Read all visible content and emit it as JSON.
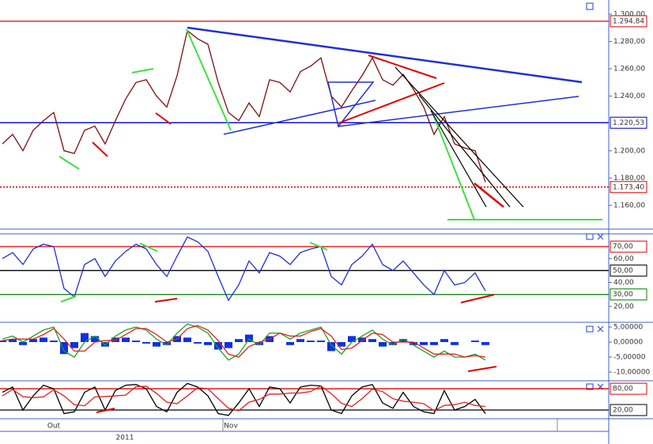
{
  "chart_data": [
    {
      "type": "line",
      "categories": [
        null,
        null,
        null,
        null,
        null,
        "Out",
        null,
        null,
        null,
        null,
        null,
        null,
        null,
        null,
        null,
        null,
        null,
        null,
        null,
        null,
        null,
        null,
        "Nov",
        null,
        null,
        null,
        null,
        null,
        null,
        null,
        null,
        null,
        null,
        null,
        null,
        null,
        null,
        null,
        null,
        null,
        null,
        null,
        null,
        null,
        null,
        null,
        null,
        null
      ],
      "x_year_label": "2011",
      "series": [
        {
          "color": "#7a1010",
          "values": [
            1205,
            1212,
            1200,
            1215,
            1222,
            1228,
            1200,
            1198,
            1215,
            1218,
            1205,
            1222,
            1238,
            1250,
            1252,
            1240,
            1232,
            1255,
            1288,
            1282,
            1278,
            1250,
            1228,
            1222,
            1235,
            1225,
            1252,
            1250,
            1243,
            1258,
            1262,
            1268,
            1240,
            1232,
            1244,
            1255,
            1268,
            1252,
            1248,
            1256,
            1245,
            1232,
            1212,
            1225,
            1205,
            1202,
            1200,
            1177
          ]
        }
      ],
      "ylim": [
        1310.4,
        1142.6
      ],
      "yticks": [
        {
          "value": 1300,
          "label": "1.300,00"
        },
        {
          "value": 1280,
          "label": "1.280,00"
        },
        {
          "value": 1260,
          "label": "1.260,00"
        },
        {
          "value": 1240,
          "label": "1.240,00"
        },
        {
          "value": 1200,
          "label": "1.200,00"
        },
        {
          "value": 1180,
          "label": "1.180,00"
        },
        {
          "value": 1160,
          "label": "1.160,00"
        }
      ],
      "levels": [
        {
          "value": 1294.84,
          "label": "1.294,84",
          "color": "#e00000"
        },
        {
          "value": 1220.53,
          "label": "1.220,53",
          "color": "#0000cc"
        },
        {
          "value": 1173.4,
          "label": "1.173,40",
          "color": "#e00000",
          "dotted": true
        }
      ]
    },
    {
      "type": "line",
      "series": [
        {
          "color": "#2030d0",
          "values": [
            60,
            65,
            55,
            68,
            72,
            70,
            35,
            28,
            55,
            60,
            45,
            58,
            66,
            72,
            68,
            55,
            45,
            62,
            78,
            74,
            66,
            45,
            25,
            38,
            58,
            48,
            65,
            62,
            55,
            65,
            68,
            70,
            45,
            38,
            55,
            62,
            72,
            55,
            50,
            58,
            48,
            38,
            30,
            50,
            38,
            40,
            48,
            33
          ]
        }
      ],
      "ylim": [
        80,
        6.7
      ],
      "yticks": [
        {
          "value": 60,
          "label": "60,00"
        },
        {
          "value": 40,
          "label": "40,00"
        },
        {
          "value": 20,
          "label": "20,00"
        }
      ],
      "levels": [
        {
          "value": 70,
          "label": "70,00",
          "color": "#e00000"
        },
        {
          "value": 50,
          "label": "50,00",
          "color": "#000000"
        },
        {
          "value": 30,
          "label": "30,00",
          "color": "#008000"
        }
      ]
    },
    {
      "type": "line",
      "series": [
        {
          "type": "bar",
          "color": "#1030e0",
          "values": [
            0.5,
            1,
            -1,
            1,
            1.5,
            0.5,
            -4,
            -2,
            3,
            2,
            -1.5,
            1.5,
            1.5,
            0.5,
            -0.5,
            -1.5,
            -1,
            2,
            1.5,
            -0.5,
            -1,
            -2.5,
            -2,
            1,
            2.5,
            -1,
            2,
            0,
            -1,
            1,
            0.5,
            0.5,
            -3,
            -1.5,
            2,
            1.5,
            1,
            -1.5,
            -1,
            1,
            -1,
            -1,
            -1,
            1,
            -1,
            0,
            0.5,
            -1
          ]
        },
        {
          "color": "#20a020",
          "values": [
            1,
            2,
            0,
            2,
            4,
            5,
            -3,
            -5,
            0,
            2,
            -1,
            2,
            4,
            5,
            4,
            1,
            -1,
            3,
            6,
            5,
            3,
            -2,
            -6,
            -4,
            1,
            -1,
            3,
            3,
            1,
            3,
            4,
            5,
            -1,
            -4,
            0,
            2,
            4,
            1,
            -1,
            1,
            -1,
            -3,
            -5,
            -3,
            -5,
            -5,
            -4,
            -6
          ]
        },
        {
          "color": "#e02020",
          "values": [
            0.5,
            1,
            1,
            1,
            2.5,
            4.5,
            1,
            -3,
            -3,
            0,
            0.5,
            0.5,
            2.5,
            4.5,
            4.5,
            2.5,
            0,
            1,
            4.5,
            5.5,
            4,
            0.5,
            -4,
            -5,
            -1.5,
            0,
            1,
            3,
            2,
            2,
            3.5,
            4.5,
            2,
            -2.5,
            -2,
            0.5,
            3,
            2.5,
            0,
            0,
            0,
            -2,
            -4,
            -4,
            -4,
            -5,
            -4.5,
            -5
          ]
        }
      ],
      "ylim": [
        6.05,
        -12.9
      ],
      "yticks": [
        {
          "value": 5,
          "label": "5,00000"
        },
        {
          "value": 0,
          "label": "0,00000"
        },
        {
          "value": -5,
          "label": "-5,00000"
        },
        {
          "value": -10,
          "label": "-10,00000"
        }
      ],
      "levels": []
    },
    {
      "type": "line",
      "series": [
        {
          "color": "#000000",
          "values": [
            70,
            85,
            20,
            60,
            90,
            80,
            10,
            15,
            70,
            85,
            20,
            75,
            90,
            92,
            80,
            30,
            15,
            70,
            95,
            85,
            60,
            10,
            5,
            40,
            80,
            30,
            85,
            80,
            40,
            85,
            90,
            88,
            20,
            10,
            60,
            85,
            92,
            40,
            25,
            70,
            30,
            15,
            10,
            75,
            20,
            30,
            50,
            10
          ]
        },
        {
          "color": "#e02020",
          "values": [
            60,
            78,
            58,
            55,
            57,
            77,
            60,
            35,
            32,
            57,
            58,
            60,
            62,
            86,
            87,
            67,
            42,
            38,
            60,
            83,
            80,
            52,
            25,
            18,
            42,
            50,
            65,
            65,
            68,
            68,
            72,
            88,
            66,
            39,
            30,
            52,
            79,
            72,
            52,
            45,
            42,
            38,
            18,
            33,
            35,
            42,
            33,
            30
          ]
        }
      ],
      "ylim": [
        98,
        0
      ],
      "yticks": [],
      "levels": [
        {
          "value": 80,
          "label": "80,00",
          "color": "#e00000"
        },
        {
          "value": 20,
          "label": "20,00",
          "color": "#000000"
        }
      ]
    }
  ]
}
